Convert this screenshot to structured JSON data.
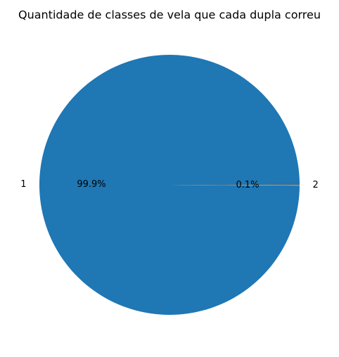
{
  "chart_data": {
    "type": "pie",
    "title": "Quantidade de classes de vela que cada dupla correu",
    "labels": [
      "1",
      "2"
    ],
    "values": [
      99.9,
      0.1
    ],
    "percent_labels": [
      "99.9%",
      "0.1%"
    ],
    "colors": [
      "#1f77b4",
      "#ff7f0e"
    ],
    "start_angle_deg": 0,
    "direction": "counterclockwise",
    "legend": "none"
  }
}
